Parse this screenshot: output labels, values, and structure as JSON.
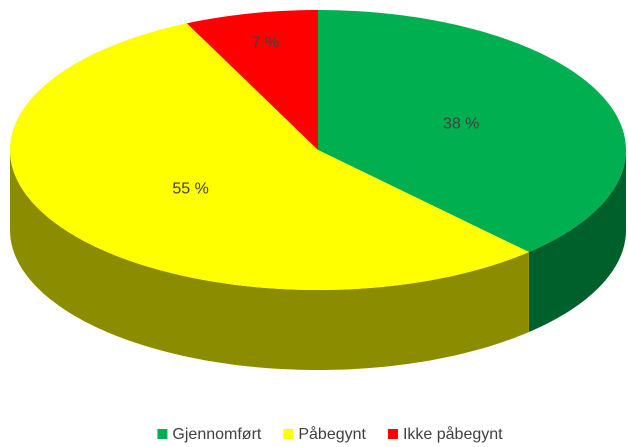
{
  "chart_data": {
    "type": "pie",
    "categories": [
      "Gjennomført",
      "Påbegynt",
      "Ikke påbegynt"
    ],
    "values": [
      38,
      55,
      7
    ],
    "value_labels": [
      "38 %",
      "55 %",
      "7 %"
    ],
    "colors": [
      "#00b050",
      "#ffff00",
      "#ff0000"
    ],
    "legend": "bottom"
  }
}
